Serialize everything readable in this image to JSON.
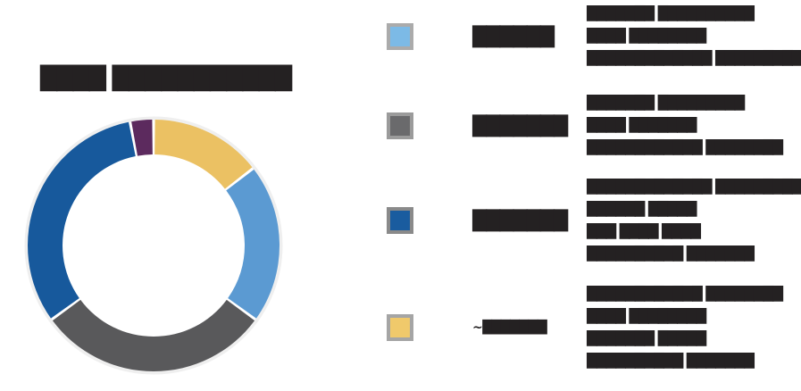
{
  "title": "████ ███████████",
  "chart_data": {
    "type": "pie",
    "donut": true,
    "inner_radius_ratio": 0.72,
    "start_angle": "12 o'clock",
    "direction": "clockwise",
    "title": "████ ███████████",
    "categories": [
      "gold-segment",
      "light-blue-segment",
      "gray-segment",
      "dark-blue-segment",
      "purple-segment"
    ],
    "values": [
      14.5,
      20.5,
      30,
      32,
      3
    ],
    "segments": [
      {
        "name": "gold-segment",
        "color": "#EBC163",
        "value": 14.5
      },
      {
        "name": "light-blue-segment",
        "color": "#5B9AD2",
        "value": 20.5
      },
      {
        "name": "gray-segment",
        "color": "#59595B",
        "value": 30
      },
      {
        "name": "dark-blue-segment",
        "color": "#17599C",
        "value": 32
      },
      {
        "name": "purple-segment",
        "color": "#5C2A5E",
        "value": 3
      }
    ],
    "gap_color": "#ffffff",
    "legend_position": "right"
  },
  "legend": {
    "items": [
      {
        "swatch_color": "#7CBAE6",
        "swatch_border": "#ABABAB",
        "percent": "██████",
        "lines": [
          "███████ ██████████",
          "████ ████████",
          "█████████████ ██████████"
        ]
      },
      {
        "swatch_color": "#6A6A6C",
        "swatch_border": "#9B9B9B",
        "percent": "███████",
        "lines": [
          "███████ █████████",
          "████ ███████",
          "████████████ ████████"
        ]
      },
      {
        "swatch_color": "#1A5C9F",
        "swatch_border": "#8A8A8A",
        "percent": "███████",
        "lines": [
          "█████████████ ██████████",
          "██████ █████",
          "███ ████ ████",
          "██████████ ███████"
        ]
      },
      {
        "swatch_color": "#F0C96B",
        "swatch_border": "#A5A5A5",
        "percent": "~███████",
        "lines": [
          "████████████ ████████",
          "████ ████████",
          "███████ █████",
          "██████████ ███████"
        ]
      }
    ]
  }
}
